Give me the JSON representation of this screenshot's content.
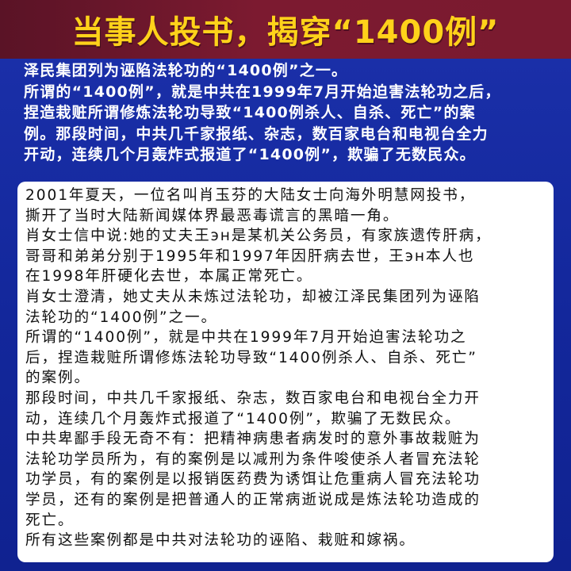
{
  "header": {
    "title": "当事人投书，揭穿“1400例”"
  },
  "intro": {
    "lines": [
      "泽民集团列为诬陷法轮功的“1400例”之一。",
      "所谓的“1400例”，就是中共在1999年7月开始迫害法轮功之后，",
      "捏造栽赃所谓修炼法轮功导致“1400例杀人、自杀、死亡”的案",
      "例。那段时间，中共几千家报纸、杂志，数百家电台和电视台全力",
      "开动，连续几个月轰炸式报道了“1400例”，欺骗了无数民众。"
    ]
  },
  "body": {
    "lines": [
      "2001年夏天，一位名叫肖玉芬的大陆女士向海外明慧网投书，",
      "撕开了当时大陆新闻媒体界最恶毒谎言的黑暗一角。",
      "肖女士信中说:她的丈夫王эн是某机关公务员，有家族遗传肝病，",
      "哥哥和弟弟分别于1995年和1997年因肝病去世，王эн本人也",
      "在1998年肝硬化去世，本属正常死亡。",
      "肖女士澄清，她丈夫从未炼过法轮功，却被江泽民集团列为诬陷",
      "法轮功的“1400例”之一。",
      "所谓的“1400例”，就是中共在1999年7月开始迫害法轮功之",
      "后，捏造栽赃所谓修炼法轮功导致“1400例杀人、自杀、死亡”",
      "的案例。",
      "那段时间，中共几千家报纸、杂志，数百家电台和电视台全力开",
      "动，连续几个月轰炸式报道了“1400例”，欺骗了无数民众。",
      "中共卑鄙手段无奇不有：把精神病患者病发时的意外事故栽赃为",
      "法轮功学员所为，有的案例是以减刑为条件唆使杀人者冒充法轮",
      "功学员，有的案例是以报销医药费为诱饵让危重病人冒充法轮功",
      "学员，还有的案例是把普通人的正常病逝说成是炼法轮功造成的",
      "死亡。",
      "所有这些案例都是中共对法轮功的诬陷、栽赃和嫁祸。"
    ]
  }
}
